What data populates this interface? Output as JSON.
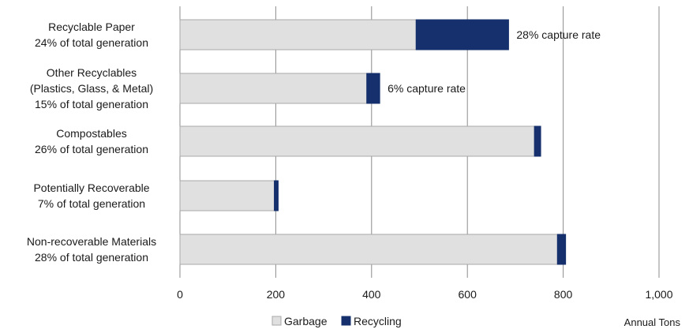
{
  "chart_data": {
    "type": "bar",
    "orientation": "horizontal",
    "stacked": true,
    "categories": [
      [
        "Recyclable Paper",
        "24% of total generation"
      ],
      [
        "Other Recyclables",
        "(Plastics, Glass, & Metal)",
        "15% of total generation"
      ],
      [
        "Compostables",
        "26% of total generation"
      ],
      [
        "Potentially Recoverable",
        "7% of total generation"
      ],
      [
        "Non-recoverable Materials",
        "28% of total generation"
      ]
    ],
    "series": [
      {
        "name": "Garbage",
        "values": [
          493,
          390,
          740,
          197,
          788
        ],
        "color": "#e0e0e0",
        "stroke": "#a8a8a8"
      },
      {
        "name": "Recycling",
        "values": [
          193,
          27,
          13,
          8,
          17
        ],
        "color": "#15306c",
        "stroke": "#15306c"
      }
    ],
    "annotations": [
      {
        "category_index": 0,
        "text": "28% capture rate"
      },
      {
        "category_index": 1,
        "text": "6% capture rate"
      }
    ],
    "xlim": [
      0,
      1000
    ],
    "xticks": [
      0,
      200,
      400,
      600,
      800,
      1000
    ],
    "xtick_labels": [
      "0",
      "200",
      "400",
      "600",
      "800",
      "1,000"
    ],
    "xlabel": "Annual Tons",
    "ylabel": "",
    "title": "",
    "grid": "vertical",
    "legend_position": "bottom"
  }
}
